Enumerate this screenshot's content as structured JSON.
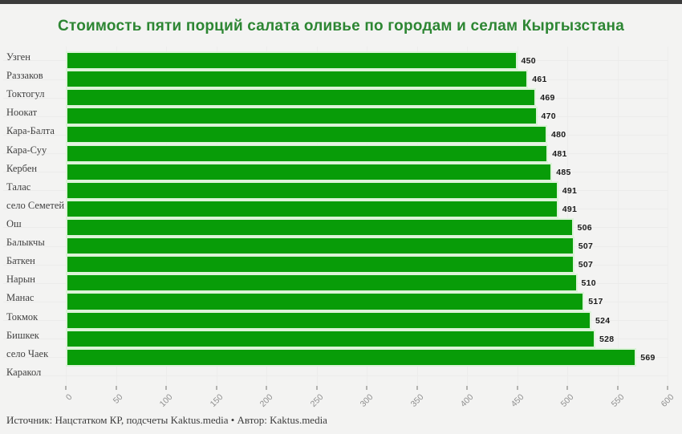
{
  "page": {
    "background_color": "#f3f3f2",
    "top_strip_color": "#3b3b3b"
  },
  "chart_data": {
    "type": "bar",
    "orientation": "horizontal",
    "title": "Стоимость пяти порций салата оливье по городам и селам Кыргызстана",
    "title_color": "#2d8633",
    "bar_color": "#089c08",
    "bar_rim_color": "#dcf3d8",
    "categories": [
      "Узген",
      "Раззаков",
      "Токтогул",
      "Ноокат",
      "Кара-Балта",
      "Кара-Суу",
      "Кербен",
      "Талас",
      "село Семетей",
      "Ош",
      "Балыкчы",
      "Баткен",
      "Нарын",
      "Манас",
      "Токмок",
      "Бишкек",
      "село Чаек",
      "Каракол"
    ],
    "values": [
      450,
      461,
      469,
      470,
      480,
      481,
      485,
      491,
      491,
      506,
      507,
      507,
      510,
      517,
      524,
      528,
      569,
      null
    ],
    "value_labels_shown": true,
    "xlabel": "",
    "ylabel": "",
    "xlim": [
      0,
      600
    ],
    "x_ticks": [
      0,
      50,
      100,
      150,
      200,
      250,
      300,
      350,
      400,
      450,
      500,
      550,
      600
    ],
    "grid": true,
    "legend": "none"
  },
  "footer": {
    "source_line": "Источник: Нацстатком КР, подсчеты Kaktus.media • Автор: Kaktus.media"
  }
}
